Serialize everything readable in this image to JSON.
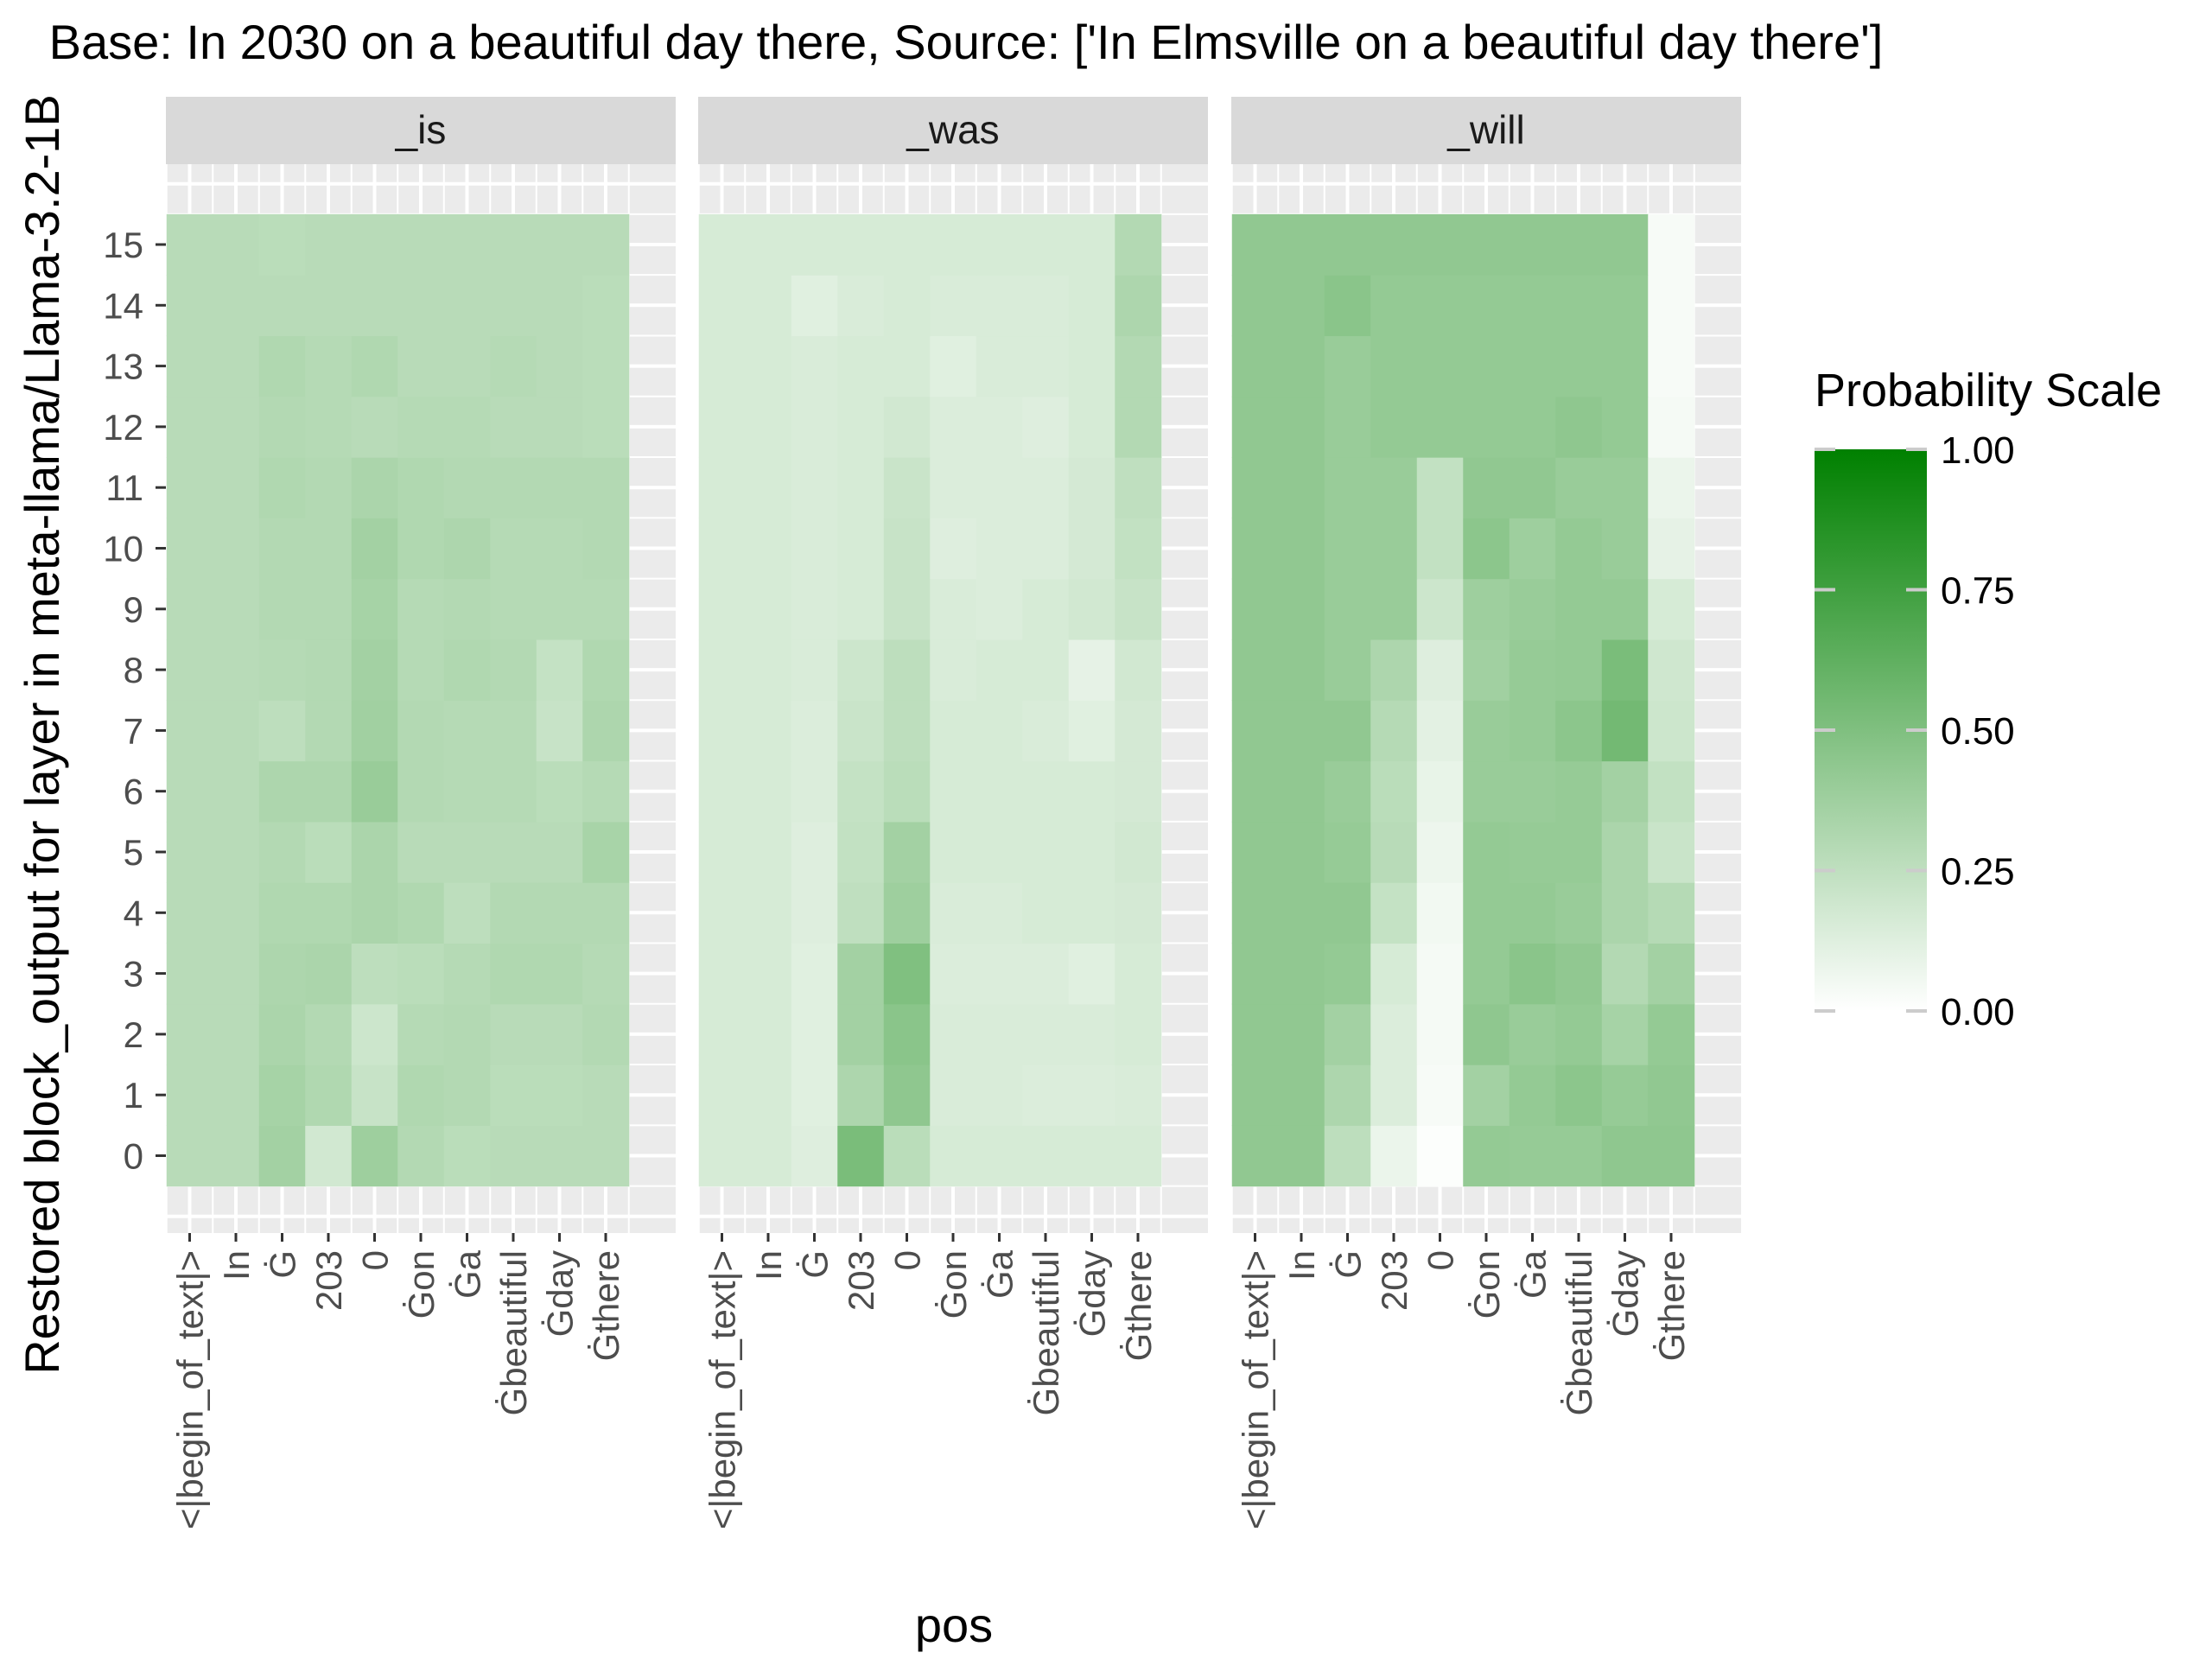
{
  "chart_data": {
    "type": "heatmap",
    "title": "Base: In 2030 on a beautiful day there, Source: ['In Elmsville on a beautiful day there']",
    "xlabel": "pos",
    "ylabel": "Restored block_output for layer in meta-llama/Llama-3.2-1B",
    "x_tick_labels": [
      "<|begin_of_text|>",
      "In",
      "Ġ",
      "203",
      "0",
      "Ġon",
      "Ġa",
      "Ġbeautiful",
      "Ġday",
      "Ġthere"
    ],
    "y_tick_labels": [
      "0",
      "1",
      "2",
      "3",
      "4",
      "5",
      "6",
      "7",
      "8",
      "9",
      "10",
      "11",
      "12",
      "13",
      "14",
      "15"
    ],
    "legend": {
      "title": "Probability Scale",
      "breaks": [
        "1.00",
        "0.75",
        "0.50",
        "0.25",
        "0.00"
      ],
      "range": [
        0,
        1
      ],
      "low_color": "#ffffff",
      "high_color": "#008000",
      "placement": "right"
    },
    "panels": [
      {
        "name": "_is",
        "values": [
          [
            0.28,
            0.28,
            0.36,
            0.18,
            0.38,
            0.3,
            0.27,
            0.28,
            0.28,
            0.28
          ],
          [
            0.28,
            0.28,
            0.35,
            0.31,
            0.22,
            0.31,
            0.3,
            0.27,
            0.27,
            0.28
          ],
          [
            0.28,
            0.28,
            0.33,
            0.3,
            0.2,
            0.29,
            0.3,
            0.28,
            0.28,
            0.3
          ],
          [
            0.28,
            0.28,
            0.32,
            0.33,
            0.26,
            0.27,
            0.29,
            0.31,
            0.31,
            0.29
          ],
          [
            0.28,
            0.28,
            0.31,
            0.31,
            0.33,
            0.31,
            0.26,
            0.3,
            0.3,
            0.3
          ],
          [
            0.28,
            0.28,
            0.3,
            0.27,
            0.33,
            0.28,
            0.28,
            0.28,
            0.28,
            0.34
          ],
          [
            0.28,
            0.28,
            0.32,
            0.32,
            0.4,
            0.3,
            0.29,
            0.29,
            0.27,
            0.29
          ],
          [
            0.28,
            0.28,
            0.26,
            0.3,
            0.37,
            0.3,
            0.29,
            0.29,
            0.22,
            0.32
          ],
          [
            0.28,
            0.28,
            0.29,
            0.3,
            0.36,
            0.29,
            0.31,
            0.3,
            0.23,
            0.31
          ],
          [
            0.28,
            0.28,
            0.3,
            0.3,
            0.35,
            0.29,
            0.3,
            0.29,
            0.29,
            0.29
          ],
          [
            0.28,
            0.28,
            0.3,
            0.3,
            0.36,
            0.31,
            0.32,
            0.29,
            0.29,
            0.3
          ],
          [
            0.28,
            0.28,
            0.31,
            0.3,
            0.33,
            0.31,
            0.3,
            0.3,
            0.3,
            0.3
          ],
          [
            0.28,
            0.28,
            0.3,
            0.29,
            0.28,
            0.29,
            0.29,
            0.28,
            0.28,
            0.27
          ],
          [
            0.28,
            0.28,
            0.31,
            0.29,
            0.31,
            0.28,
            0.28,
            0.29,
            0.28,
            0.27
          ],
          [
            0.28,
            0.28,
            0.28,
            0.28,
            0.28,
            0.28,
            0.28,
            0.28,
            0.28,
            0.27
          ],
          [
            0.28,
            0.28,
            0.27,
            0.28,
            0.28,
            0.28,
            0.28,
            0.28,
            0.28,
            0.28
          ]
        ]
      },
      {
        "name": "_was",
        "values": [
          [
            0.16,
            0.16,
            0.13,
            0.52,
            0.27,
            0.16,
            0.16,
            0.16,
            0.16,
            0.16
          ],
          [
            0.16,
            0.16,
            0.12,
            0.32,
            0.44,
            0.15,
            0.15,
            0.14,
            0.14,
            0.15
          ],
          [
            0.16,
            0.16,
            0.12,
            0.36,
            0.46,
            0.15,
            0.15,
            0.15,
            0.15,
            0.16
          ],
          [
            0.16,
            0.16,
            0.12,
            0.36,
            0.5,
            0.14,
            0.14,
            0.14,
            0.12,
            0.16
          ],
          [
            0.16,
            0.16,
            0.13,
            0.25,
            0.38,
            0.15,
            0.15,
            0.16,
            0.16,
            0.17
          ],
          [
            0.16,
            0.16,
            0.13,
            0.24,
            0.36,
            0.16,
            0.16,
            0.16,
            0.16,
            0.18
          ],
          [
            0.16,
            0.16,
            0.14,
            0.23,
            0.27,
            0.16,
            0.16,
            0.16,
            0.16,
            0.17
          ],
          [
            0.16,
            0.16,
            0.14,
            0.21,
            0.26,
            0.16,
            0.16,
            0.15,
            0.12,
            0.17
          ],
          [
            0.16,
            0.16,
            0.15,
            0.2,
            0.26,
            0.15,
            0.16,
            0.16,
            0.1,
            0.18
          ],
          [
            0.16,
            0.16,
            0.15,
            0.16,
            0.22,
            0.15,
            0.14,
            0.16,
            0.18,
            0.22
          ],
          [
            0.16,
            0.16,
            0.15,
            0.16,
            0.22,
            0.13,
            0.14,
            0.14,
            0.17,
            0.24
          ],
          [
            0.16,
            0.16,
            0.15,
            0.16,
            0.21,
            0.14,
            0.14,
            0.14,
            0.17,
            0.25
          ],
          [
            0.16,
            0.16,
            0.15,
            0.16,
            0.18,
            0.14,
            0.14,
            0.13,
            0.16,
            0.3
          ],
          [
            0.16,
            0.16,
            0.15,
            0.16,
            0.16,
            0.12,
            0.15,
            0.15,
            0.16,
            0.3
          ],
          [
            0.16,
            0.16,
            0.12,
            0.15,
            0.16,
            0.15,
            0.15,
            0.15,
            0.16,
            0.32
          ],
          [
            0.16,
            0.16,
            0.16,
            0.16,
            0.16,
            0.16,
            0.16,
            0.16,
            0.16,
            0.3
          ]
        ]
      },
      {
        "name": "_will",
        "values": [
          [
            0.43,
            0.43,
            0.26,
            0.08,
            0.01,
            0.42,
            0.41,
            0.41,
            0.44,
            0.44
          ],
          [
            0.43,
            0.43,
            0.32,
            0.14,
            0.03,
            0.36,
            0.42,
            0.45,
            0.41,
            0.43
          ],
          [
            0.43,
            0.43,
            0.36,
            0.14,
            0.04,
            0.44,
            0.4,
            0.42,
            0.35,
            0.42
          ],
          [
            0.43,
            0.43,
            0.42,
            0.16,
            0.04,
            0.42,
            0.46,
            0.43,
            0.3,
            0.36
          ],
          [
            0.43,
            0.43,
            0.43,
            0.23,
            0.05,
            0.42,
            0.42,
            0.4,
            0.33,
            0.29
          ],
          [
            0.43,
            0.43,
            0.41,
            0.28,
            0.07,
            0.42,
            0.41,
            0.41,
            0.33,
            0.21
          ],
          [
            0.43,
            0.43,
            0.4,
            0.27,
            0.09,
            0.4,
            0.4,
            0.41,
            0.36,
            0.24
          ],
          [
            0.43,
            0.43,
            0.43,
            0.29,
            0.11,
            0.4,
            0.41,
            0.45,
            0.55,
            0.2
          ],
          [
            0.43,
            0.43,
            0.4,
            0.32,
            0.13,
            0.37,
            0.41,
            0.42,
            0.52,
            0.19
          ],
          [
            0.43,
            0.43,
            0.4,
            0.4,
            0.2,
            0.38,
            0.4,
            0.42,
            0.42,
            0.16
          ],
          [
            0.43,
            0.43,
            0.4,
            0.4,
            0.24,
            0.45,
            0.38,
            0.42,
            0.4,
            0.1
          ],
          [
            0.43,
            0.43,
            0.4,
            0.4,
            0.24,
            0.43,
            0.43,
            0.4,
            0.4,
            0.08
          ],
          [
            0.43,
            0.43,
            0.4,
            0.42,
            0.42,
            0.42,
            0.42,
            0.44,
            0.42,
            0.04
          ],
          [
            0.43,
            0.43,
            0.4,
            0.42,
            0.42,
            0.42,
            0.42,
            0.42,
            0.42,
            0.03
          ],
          [
            0.43,
            0.43,
            0.46,
            0.42,
            0.42,
            0.42,
            0.42,
            0.42,
            0.42,
            0.03
          ],
          [
            0.43,
            0.43,
            0.43,
            0.43,
            0.43,
            0.43,
            0.43,
            0.43,
            0.43,
            0.03
          ]
        ]
      }
    ]
  }
}
